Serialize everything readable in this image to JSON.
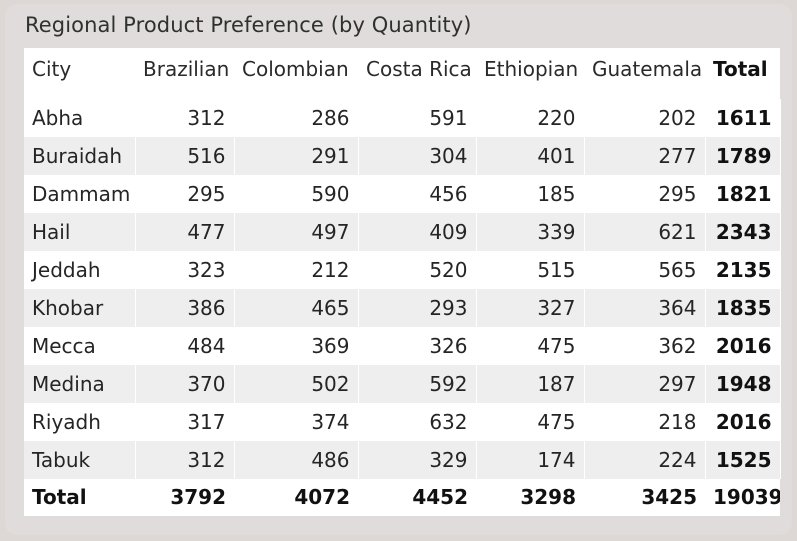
{
  "title": "Regional Product Preference (by Quantity)",
  "columns": [
    "City",
    "Brazilian",
    "Colombian",
    "Costa Rica",
    "Ethiopian",
    "Guatemala",
    "Total"
  ],
  "rows": [
    {
      "city": "Abha",
      "values": [
        "312",
        "286",
        "591",
        "220",
        "202"
      ],
      "total": "1611"
    },
    {
      "city": "Buraidah",
      "values": [
        "516",
        "291",
        "304",
        "401",
        "277"
      ],
      "total": "1789"
    },
    {
      "city": "Dammam",
      "values": [
        "295",
        "590",
        "456",
        "185",
        "295"
      ],
      "total": "1821"
    },
    {
      "city": "Hail",
      "values": [
        "477",
        "497",
        "409",
        "339",
        "621"
      ],
      "total": "2343"
    },
    {
      "city": "Jeddah",
      "values": [
        "323",
        "212",
        "520",
        "515",
        "565"
      ],
      "total": "2135"
    },
    {
      "city": "Khobar",
      "values": [
        "386",
        "465",
        "293",
        "327",
        "364"
      ],
      "total": "1835"
    },
    {
      "city": "Mecca",
      "values": [
        "484",
        "369",
        "326",
        "475",
        "362"
      ],
      "total": "2016"
    },
    {
      "city": "Medina",
      "values": [
        "370",
        "502",
        "592",
        "187",
        "297"
      ],
      "total": "1948"
    },
    {
      "city": "Riyadh",
      "values": [
        "317",
        "374",
        "632",
        "475",
        "218"
      ],
      "total": "2016"
    },
    {
      "city": "Tabuk",
      "values": [
        "312",
        "486",
        "329",
        "174",
        "224"
      ],
      "total": "1525"
    }
  ],
  "totals": {
    "label": "Total",
    "values": [
      "3792",
      "4072",
      "4452",
      "3298",
      "3425"
    ],
    "total": "19039"
  },
  "colors": {
    "background": "#e0dcdc",
    "row_band": "#eeeeee",
    "table": "#ffffff"
  }
}
